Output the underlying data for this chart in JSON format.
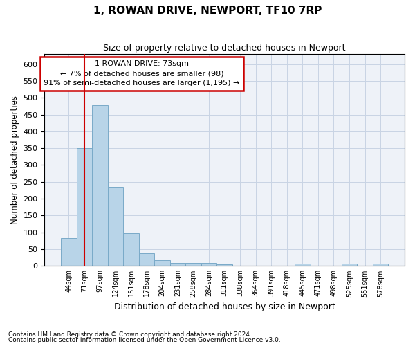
{
  "title": "1, ROWAN DRIVE, NEWPORT, TF10 7RP",
  "subtitle": "Size of property relative to detached houses in Newport",
  "xlabel": "Distribution of detached houses by size in Newport",
  "ylabel": "Number of detached properties",
  "footnote1": "Contains HM Land Registry data © Crown copyright and database right 2024.",
  "footnote2": "Contains public sector information licensed under the Open Government Licence v3.0.",
  "annotation_line1": "1 ROWAN DRIVE: 73sqm",
  "annotation_line2": "← 7% of detached houses are smaller (98)",
  "annotation_line3": "91% of semi-detached houses are larger (1,195) →",
  "bar_color": "#b8d4e8",
  "bar_edge_color": "#7aaac8",
  "vline_color": "#cc0000",
  "annotation_box_edgecolor": "#cc0000",
  "grid_color": "#c8d4e4",
  "bg_color": "#eef2f8",
  "categories": [
    "44sqm",
    "71sqm",
    "97sqm",
    "124sqm",
    "151sqm",
    "178sqm",
    "204sqm",
    "231sqm",
    "258sqm",
    "284sqm",
    "311sqm",
    "338sqm",
    "364sqm",
    "391sqm",
    "418sqm",
    "445sqm",
    "471sqm",
    "498sqm",
    "525sqm",
    "551sqm",
    "578sqm"
  ],
  "values": [
    83,
    350,
    478,
    235,
    97,
    37,
    18,
    8,
    9,
    8,
    5,
    0,
    0,
    0,
    0,
    6,
    0,
    0,
    6,
    0,
    6
  ],
  "ylim": [
    0,
    630
  ],
  "yticks": [
    0,
    50,
    100,
    150,
    200,
    250,
    300,
    350,
    400,
    450,
    500,
    550,
    600
  ],
  "vline_x_index": 1.0
}
